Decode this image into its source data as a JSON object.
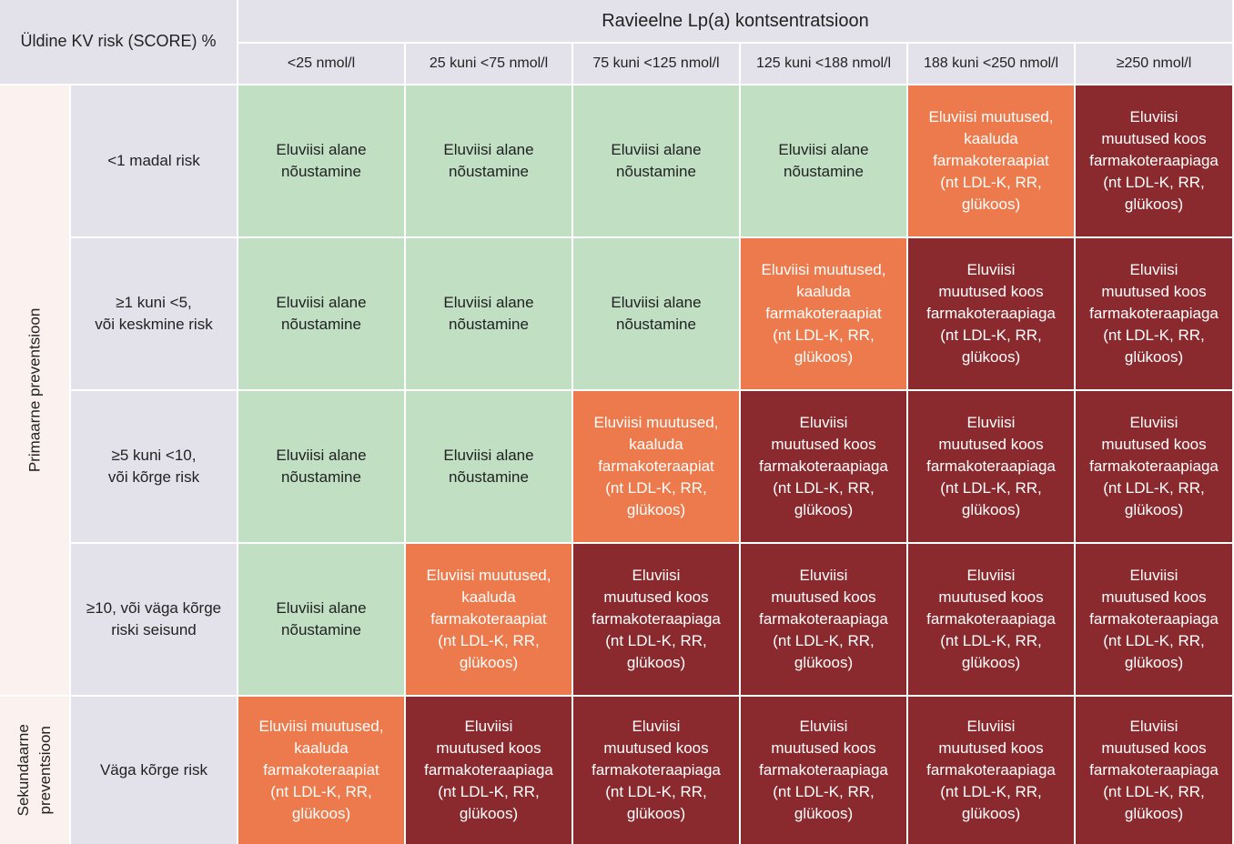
{
  "corner_label": "Üldine KV risk (SCORE) %",
  "lpa_title": "Ravieelne Lp(a) kontsentratsioon",
  "columns": [
    "<25 nmol/l",
    "25 kuni <75 nmol/l",
    "75 kuni <125 nmol/l",
    "125 kuni <188 nmol/l",
    "188 kuni <250 nmol/l",
    "≥250 nmol/l"
  ],
  "groups": {
    "primary": "Primaarne preventsioon",
    "secondary": "Sekundaarne\npreventsioon"
  },
  "rows": [
    {
      "label": "<1 madal risk",
      "group": "primary",
      "levels": [
        "lifestyle",
        "lifestyle",
        "lifestyle",
        "lifestyle",
        "consider",
        "combo"
      ]
    },
    {
      "label": "≥1 kuni <5,\nvõi keskmine risk",
      "group": "primary",
      "levels": [
        "lifestyle",
        "lifestyle",
        "lifestyle",
        "consider",
        "combo",
        "combo"
      ]
    },
    {
      "label": "≥5 kuni <10,\nvõi kõrge risk",
      "group": "primary",
      "levels": [
        "lifestyle",
        "lifestyle",
        "consider",
        "combo",
        "combo",
        "combo"
      ]
    },
    {
      "label": "≥10, või väga kõrge\nriski seisund",
      "group": "primary",
      "levels": [
        "lifestyle",
        "consider",
        "combo",
        "combo",
        "combo",
        "combo"
      ]
    },
    {
      "label": "Väga kõrge risk",
      "group": "secondary",
      "levels": [
        "consider",
        "combo",
        "combo",
        "combo",
        "combo",
        "combo"
      ]
    }
  ],
  "levels": {
    "lifestyle": {
      "text": "Eluviisi alane\nnõustamine",
      "color": "#c0dfc3"
    },
    "consider": {
      "text": "Eluviisi muutused,\nkaaluda\nfarmakoteraapiat\n(nt LDL-K, RR,\nglükoos)",
      "color": "#ec7a4c"
    },
    "combo": {
      "text": "Eluviisi\nmuutused koos\nfarmakoteraapiaga\n(nt LDL-K, RR,\nglükoos)",
      "color": "#8b2a2e"
    }
  }
}
